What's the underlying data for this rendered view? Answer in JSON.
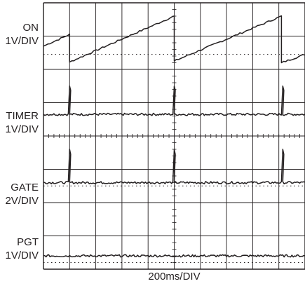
{
  "chart_data": {
    "type": "line",
    "instrument": "oscilloscope",
    "grid": true,
    "divisions": {
      "x": 10,
      "y": 8
    },
    "x_scale": "200ms/DIV",
    "x_scale_value_ms_per_div": 200,
    "x_range_div": [
      0,
      10
    ],
    "trace_color": "#231f20",
    "channels": [
      {
        "id": "on",
        "name": "ON",
        "scale": "1V/DIV",
        "volts_per_div": 1,
        "baseline_div_from_top": 1.5,
        "shape": "sawtooth",
        "points": [
          [
            0,
            0.2
          ],
          [
            1.0,
            0.55
          ],
          [
            1.0,
            -0.28
          ],
          [
            5.0,
            1.1
          ],
          [
            5.0,
            -0.25
          ],
          [
            9.1,
            1.1
          ],
          [
            9.1,
            -0.3
          ],
          [
            10,
            -0.05
          ]
        ]
      },
      {
        "id": "timer",
        "name": "TIMER",
        "scale": "1V/DIV",
        "volts_per_div": 1,
        "baseline_div_from_top": 3.35,
        "shape": "pulse",
        "pulse_times_div": [
          1.0,
          5.0,
          9.15
        ],
        "pulse_amplitude_div": 0.85
      },
      {
        "id": "gate",
        "name": "GATE",
        "scale": "2V/DIV",
        "volts_per_div": 2,
        "baseline_div_from_top": 5.4,
        "shape": "pulse",
        "pulse_times_div": [
          1.0,
          5.0,
          9.15
        ],
        "pulse_amplitude_div": 1.0
      },
      {
        "id": "pgt",
        "name": "PGT",
        "scale": "1V/DIV",
        "volts_per_div": 1,
        "baseline_div_from_top": 7.6,
        "shape": "flat"
      }
    ],
    "reference_lines_div_from_top": [
      1.55,
      5.5,
      7.8
    ]
  }
}
